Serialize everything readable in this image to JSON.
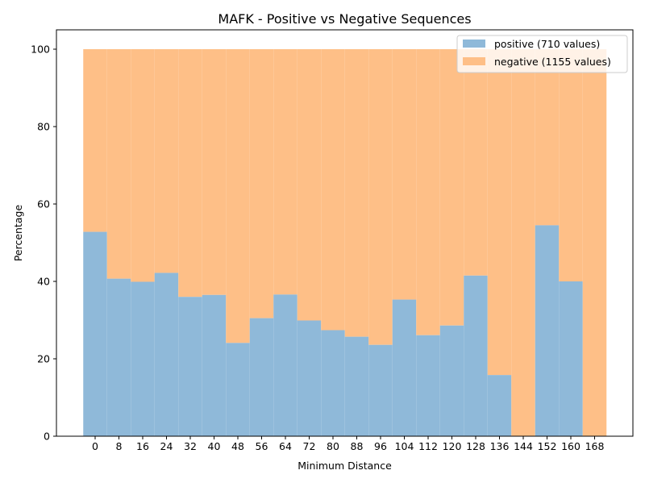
{
  "chart_data": {
    "type": "bar",
    "title": "MAFK - Positive vs Negative Sequences",
    "xlabel": "Minimum Distance",
    "ylabel": "Percentage",
    "categories": [
      0,
      8,
      16,
      24,
      32,
      40,
      48,
      56,
      64,
      72,
      80,
      88,
      96,
      104,
      112,
      120,
      128,
      136,
      144,
      152,
      160,
      168
    ],
    "x_ticks": [
      "0",
      "8",
      "16",
      "24",
      "32",
      "40",
      "48",
      "56",
      "64",
      "72",
      "80",
      "88",
      "96",
      "104",
      "112",
      "120",
      "128",
      "136",
      "144",
      "152",
      "160",
      "168"
    ],
    "ylim": [
      0,
      105
    ],
    "y_ticks": [
      "0",
      "20",
      "40",
      "60",
      "80",
      "100"
    ],
    "stacked": true,
    "grid": false,
    "legend_position": "top-right",
    "series": [
      {
        "name": "positive (710 values)",
        "color": "#8fb9d9",
        "values": [
          52.8,
          40.7,
          39.9,
          42.2,
          36.0,
          36.5,
          24.1,
          30.5,
          36.6,
          29.9,
          27.4,
          25.7,
          23.6,
          35.3,
          26.1,
          28.6,
          41.5,
          15.8,
          0,
          54.5,
          40.0,
          0
        ]
      },
      {
        "name": "negative (1155 values)",
        "color": "#febf87",
        "values": [
          47.2,
          59.3,
          60.1,
          57.8,
          64.0,
          63.5,
          75.9,
          69.5,
          63.4,
          70.1,
          72.6,
          74.3,
          76.4,
          64.7,
          73.9,
          71.4,
          58.5,
          84.2,
          100,
          45.5,
          60.0,
          100
        ]
      }
    ]
  }
}
